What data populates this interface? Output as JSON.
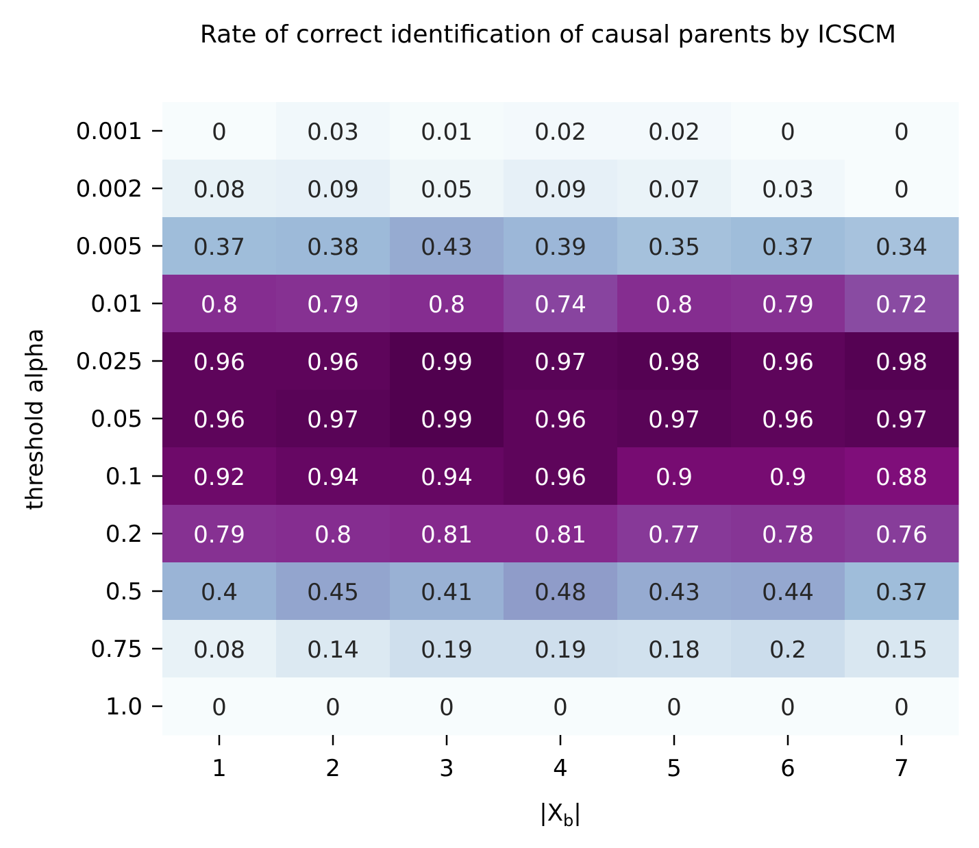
{
  "chart_data": {
    "type": "heatmap",
    "title": "Rate of correct identification of causal parents by ICSCM",
    "xlabel_prefix": "|X",
    "xlabel_sub": "b",
    "xlabel_suffix": "|",
    "ylabel": "threshold alpha",
    "x_categories": [
      "1",
      "2",
      "3",
      "4",
      "5",
      "6",
      "7"
    ],
    "y_categories": [
      "0.001",
      "0.002",
      "0.005",
      "0.01",
      "0.025",
      "0.05",
      "0.1",
      "0.2",
      "0.5",
      "0.75",
      "1.0"
    ],
    "values": [
      [
        0,
        0.03,
        0.01,
        0.02,
        0.02,
        0,
        0
      ],
      [
        0.08,
        0.09,
        0.05,
        0.09,
        0.07,
        0.03,
        0
      ],
      [
        0.37,
        0.38,
        0.43,
        0.39,
        0.35,
        0.37,
        0.34
      ],
      [
        0.8,
        0.79,
        0.8,
        0.74,
        0.8,
        0.79,
        0.72
      ],
      [
        0.96,
        0.96,
        0.99,
        0.97,
        0.98,
        0.96,
        0.98
      ],
      [
        0.96,
        0.97,
        0.99,
        0.96,
        0.97,
        0.96,
        0.97
      ],
      [
        0.92,
        0.94,
        0.94,
        0.96,
        0.9,
        0.9,
        0.88
      ],
      [
        0.79,
        0.8,
        0.81,
        0.81,
        0.77,
        0.78,
        0.76
      ],
      [
        0.4,
        0.45,
        0.41,
        0.48,
        0.43,
        0.44,
        0.37
      ],
      [
        0.08,
        0.14,
        0.19,
        0.19,
        0.18,
        0.2,
        0.15
      ],
      [
        0,
        0,
        0,
        0,
        0,
        0,
        0
      ]
    ],
    "vmin": 0,
    "vmax": 1,
    "colormap": "BuPu",
    "colorbar": false,
    "annotations": true
  }
}
